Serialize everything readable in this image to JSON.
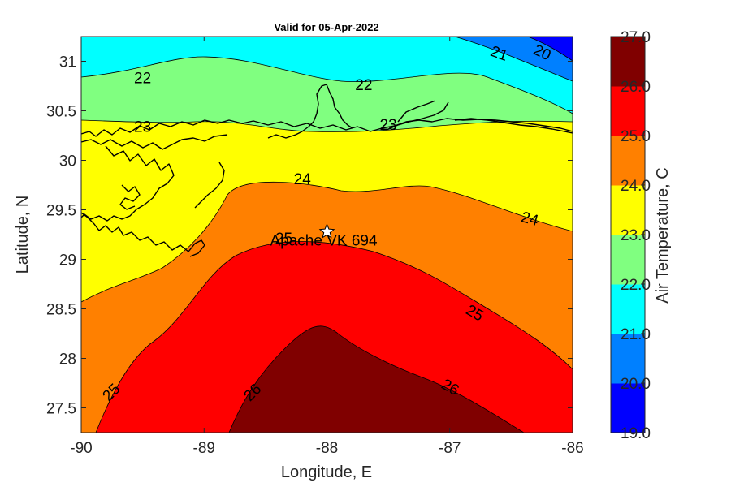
{
  "title": "Valid for 05-Apr-2022",
  "chart_data": {
    "type": "heatmap",
    "variable": "Air Temperature",
    "xlabel": "Longitude, E",
    "ylabel": "Latitude, N",
    "colorbar_label": "Air Temperature, C",
    "xlim": [
      -90,
      -86
    ],
    "ylim": [
      27.25,
      31.25
    ],
    "xticks": [
      "-90",
      "-89",
      "-88",
      "-87",
      "-86"
    ],
    "xtick_values": [
      -90,
      -89,
      -88,
      -87,
      -86
    ],
    "yticks": [
      "27.5",
      "28",
      "28.5",
      "29",
      "29.5",
      "30",
      "30.5",
      "31"
    ],
    "ytick_values": [
      27.5,
      28,
      28.5,
      29,
      29.5,
      30,
      30.5,
      31
    ],
    "levels": [
      19,
      20,
      21,
      22,
      23,
      24,
      25,
      26,
      27
    ],
    "colorbar_ticks": [
      "19.0",
      "20.0",
      "21.0",
      "22.0",
      "23.0",
      "24.0",
      "25.0",
      "26.0",
      "27.0"
    ],
    "band_colors": [
      "#0000ff",
      "#0080ff",
      "#00ffff",
      "#80ff80",
      "#ffff00",
      "#ff8000",
      "#ff0000",
      "#800000"
    ],
    "contour_labels": [
      {
        "text": "20",
        "lon": -86.25,
        "lat": 31.08,
        "rot": 25
      },
      {
        "text": "21",
        "lon": -86.6,
        "lat": 31.07,
        "rot": 20
      },
      {
        "text": "22",
        "lon": -89.5,
        "lat": 30.82,
        "rot": 0
      },
      {
        "text": "22",
        "lon": -87.7,
        "lat": 30.75,
        "rot": 0
      },
      {
        "text": "23",
        "lon": -89.5,
        "lat": 30.33,
        "rot": 0
      },
      {
        "text": "23",
        "lon": -87.5,
        "lat": 30.35,
        "rot": 0
      },
      {
        "text": "24",
        "lon": -88.2,
        "lat": 29.8,
        "rot": 0
      },
      {
        "text": "24",
        "lon": -86.35,
        "lat": 29.4,
        "rot": 15
      },
      {
        "text": "25",
        "lon": -88.35,
        "lat": 29.2,
        "rot": 0
      },
      {
        "text": "25",
        "lon": -86.8,
        "lat": 28.45,
        "rot": 30
      },
      {
        "text": "25",
        "lon": -89.75,
        "lat": 27.65,
        "rot": -45
      },
      {
        "text": "26",
        "lon": -88.6,
        "lat": 27.65,
        "rot": -45
      },
      {
        "text": "26",
        "lon": -87.0,
        "lat": 27.7,
        "rot": 30
      }
    ],
    "station": {
      "name": "Apache VK 694",
      "lon": -88.0,
      "lat": 29.28
    }
  }
}
